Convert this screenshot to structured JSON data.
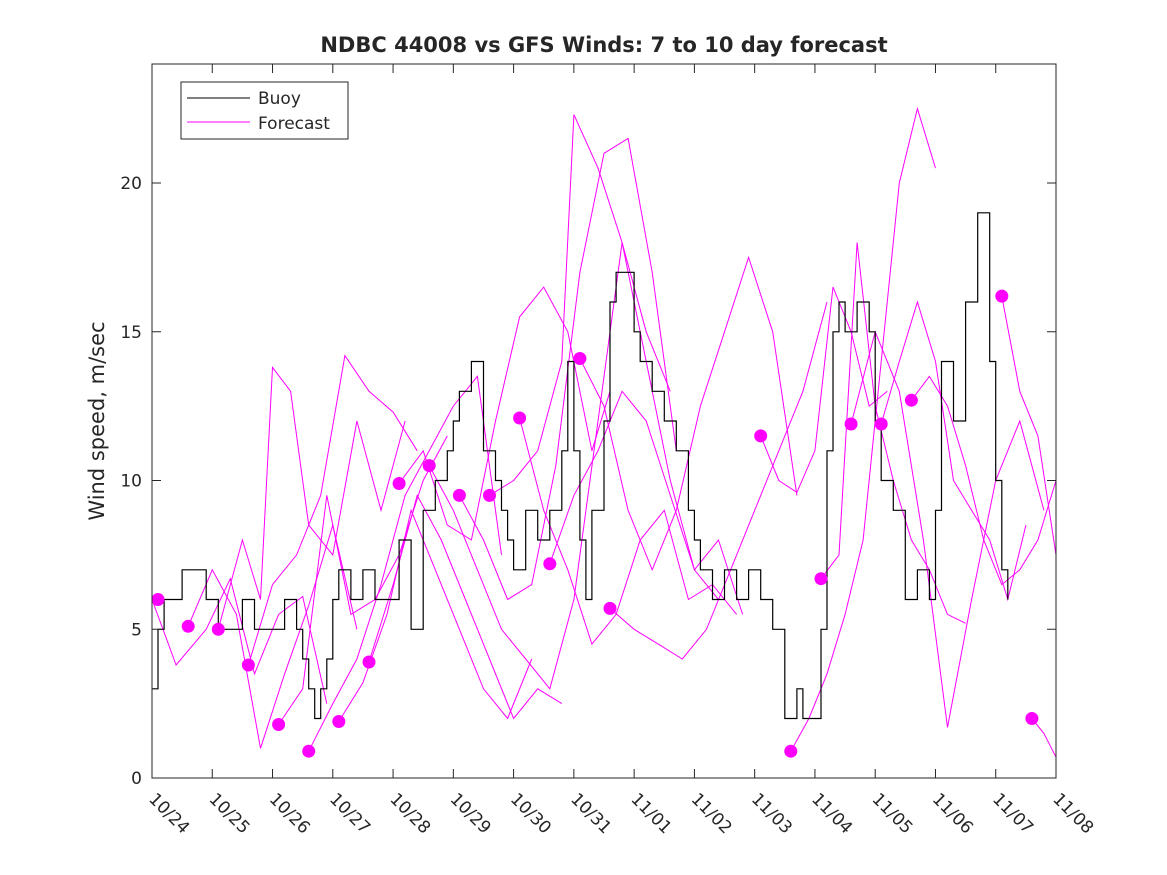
{
  "chart_data": {
    "type": "line",
    "title": "NDBC 44008 vs GFS Winds: 7 to 10 day forecast",
    "xlabel": "",
    "ylabel": "Wind speed, m/sec",
    "xlim": [
      0,
      15
    ],
    "ylim": [
      0,
      24
    ],
    "xtick_values": [
      0,
      1,
      2,
      3,
      4,
      5,
      6,
      7,
      8,
      9,
      10,
      11,
      12,
      13,
      14,
      15
    ],
    "xtick_labels": [
      "10/24",
      "10/25",
      "10/26",
      "10/27",
      "10/28",
      "10/29",
      "10/30",
      "10/31",
      "11/01",
      "11/02",
      "11/03",
      "11/04",
      "11/05",
      "11/06",
      "11/07",
      "11/08"
    ],
    "ytick_values": [
      0,
      5,
      10,
      15,
      20
    ],
    "ytick_labels": [
      "0",
      "5",
      "10",
      "15",
      "20"
    ],
    "grid": false,
    "legend_placement": "top-left",
    "colors": {
      "buoy": "#000000",
      "forecast": "#ff00ff",
      "axes": "#262626"
    },
    "series": [
      {
        "name": "Buoy",
        "x": [
          0,
          0.1,
          0.2,
          0.3,
          0.5,
          0.7,
          0.8,
          0.9,
          1.0,
          1.1,
          1.3,
          1.5,
          1.7,
          1.9,
          2.0,
          2.2,
          2.4,
          2.5,
          2.6,
          2.7,
          2.8,
          2.9,
          3.0,
          3.1,
          3.3,
          3.5,
          3.7,
          3.9,
          4.0,
          4.1,
          4.3,
          4.5,
          4.7,
          4.9,
          5.0,
          5.1,
          5.3,
          5.5,
          5.7,
          5.8,
          5.9,
          6.0,
          6.2,
          6.4,
          6.6,
          6.8,
          6.9,
          7.0,
          7.1,
          7.2,
          7.3,
          7.5,
          7.6,
          7.7,
          7.9,
          8.0,
          8.1,
          8.3,
          8.5,
          8.7,
          8.9,
          9.0,
          9.1,
          9.3,
          9.5,
          9.7,
          9.9,
          10.0,
          10.1,
          10.3,
          10.5,
          10.6,
          10.7,
          10.8,
          10.9,
          11.0,
          11.1,
          11.2,
          11.3,
          11.4,
          11.5,
          11.7,
          11.9,
          12.0,
          12.1,
          12.3,
          12.5,
          12.7,
          12.9,
          13.0,
          13.1,
          13.3,
          13.5,
          13.7,
          13.9,
          14.0,
          14.1,
          14.2
        ],
        "values": [
          3,
          5,
          6,
          6,
          7,
          7,
          7,
          6,
          6,
          5,
          5,
          6,
          5,
          5,
          5,
          6,
          5,
          4,
          3,
          2,
          3,
          4,
          6,
          7,
          6,
          7,
          6,
          6,
          6,
          8,
          5,
          9,
          10,
          11,
          12,
          13,
          14,
          11,
          10,
          9,
          8,
          7,
          9,
          8,
          9,
          11,
          14,
          11,
          8,
          6,
          9,
          12,
          16,
          17,
          17,
          15,
          14,
          13,
          12,
          11,
          9,
          8,
          7,
          6,
          7,
          6,
          7,
          7,
          6,
          5,
          2,
          2,
          3,
          2,
          2,
          2,
          5,
          11,
          15,
          16,
          15,
          16,
          15,
          12,
          10,
          9,
          6,
          7,
          6,
          9,
          14,
          12,
          16,
          19,
          14,
          10,
          7,
          6
        ]
      },
      {
        "name": "Forecast",
        "lines": [
          {
            "x": [
              0,
              0.4,
              0.9,
              1.3,
              1.7,
              2.1,
              2.5,
              2.9
            ],
            "values": [
              6.0,
              3.8,
              5.0,
              6.7,
              3.5,
              5.5,
              6.1,
              2.5
            ]
          },
          {
            "x": [
              0.6,
              1.0,
              1.4,
              1.8,
              2.2,
              2.6,
              3.0,
              3.4
            ],
            "values": [
              5.1,
              7.0,
              5.5,
              1.0,
              3.5,
              5.8,
              8.5,
              5.0
            ]
          },
          {
            "x": [
              1.1,
              1.5,
              1.8,
              2.0,
              2.3,
              2.6,
              3.0,
              3.4,
              3.8,
              4.2
            ],
            "values": [
              5.0,
              8.0,
              6.0,
              13.8,
              13.0,
              8.5,
              7.5,
              12.0,
              9.0,
              12.0
            ]
          },
          {
            "x": [
              1.6,
              2.0,
              2.4,
              2.8,
              3.2,
              3.6,
              4.0,
              4.4
            ],
            "values": [
              3.8,
              6.5,
              7.5,
              9.5,
              14.2,
              13.0,
              12.3,
              11.0
            ]
          },
          {
            "x": [
              2.1,
              2.5,
              2.9,
              3.3,
              3.7,
              4.1,
              4.5,
              4.9
            ],
            "values": [
              1.8,
              3.0,
              9.5,
              5.5,
              6.0,
              7.5,
              10.0,
              11.5
            ]
          },
          {
            "x": [
              2.6,
              3.0,
              3.4,
              3.8,
              4.2,
              4.6,
              5.0,
              5.4,
              5.8
            ],
            "values": [
              0.9,
              2.5,
              4.0,
              6.5,
              9.5,
              11.0,
              12.5,
              13.5,
              7.5
            ]
          },
          {
            "x": [
              3.1,
              3.5,
              3.9,
              4.3,
              4.7,
              5.1,
              5.5,
              5.9,
              6.3
            ],
            "values": [
              1.9,
              3.2,
              5.5,
              9.0,
              7.0,
              5.0,
              3.0,
              2.0,
              4.0
            ]
          },
          {
            "x": [
              3.6,
              4.0,
              4.4,
              4.8,
              5.2,
              5.6,
              6.0,
              6.4,
              6.8
            ],
            "values": [
              3.9,
              6.5,
              9.5,
              8.0,
              6.0,
              4.0,
              2.0,
              3.0,
              2.5
            ]
          },
          {
            "x": [
              4.1,
              4.5,
              4.9,
              5.3,
              5.7,
              6.1,
              6.5,
              6.9,
              7.3,
              7.6
            ],
            "values": [
              9.9,
              11.0,
              8.5,
              8.0,
              12.0,
              15.5,
              16.5,
              15.0,
              11.0,
              13.0
            ]
          },
          {
            "x": [
              4.6,
              5.0,
              5.4,
              5.8,
              6.2,
              6.6,
              7.0,
              7.4,
              7.8,
              8.2,
              8.6
            ],
            "values": [
              10.5,
              9.0,
              7.0,
              5.0,
              4.0,
              3.0,
              6.0,
              12.0,
              18.0,
              15.0,
              13.0
            ]
          },
          {
            "x": [
              5.1,
              5.5,
              5.9,
              6.3,
              6.7,
              7.1,
              7.5,
              7.9,
              8.3,
              8.7
            ],
            "values": [
              9.5,
              8.0,
              6.0,
              6.5,
              10.5,
              17.0,
              21.0,
              21.5,
              17.0,
              11.0
            ]
          },
          {
            "x": [
              5.6,
              6.0,
              6.4,
              6.8,
              7.0,
              7.4,
              7.8,
              8.2,
              8.6,
              9.0,
              9.4
            ],
            "values": [
              9.5,
              10.0,
              11.0,
              14.0,
              22.3,
              20.5,
              18.0,
              14.0,
              10.0,
              7.0,
              6.0
            ]
          },
          {
            "x": [
              6.1,
              6.5,
              6.9,
              7.3,
              7.7,
              8.1,
              8.5,
              8.9,
              9.3,
              9.7
            ],
            "values": [
              12.1,
              9.0,
              7.0,
              4.5,
              5.5,
              8.0,
              9.0,
              6.0,
              6.5,
              5.5
            ]
          },
          {
            "x": [
              6.6,
              7.0,
              7.4,
              7.8,
              8.2,
              8.6,
              9.0,
              9.4,
              9.8
            ],
            "values": [
              7.2,
              9.5,
              11.0,
              13.0,
              12.0,
              9.5,
              7.0,
              8.0,
              5.5
            ]
          },
          {
            "x": [
              7.1,
              7.5,
              7.9,
              8.3,
              8.7,
              9.1,
              9.5,
              9.9,
              10.3,
              10.7
            ],
            "values": [
              14.1,
              12.5,
              9.0,
              7.0,
              9.0,
              12.5,
              15.0,
              17.5,
              15.0,
              9.5
            ]
          },
          {
            "x": [
              7.6,
              8.0,
              8.4,
              8.8,
              9.2,
              9.6,
              10.0,
              10.4,
              10.8,
              11.2
            ],
            "values": [
              5.7,
              5.0,
              4.5,
              4.0,
              5.0,
              7.0,
              9.0,
              11.0,
              13.0,
              16.0
            ]
          },
          {
            "x": [
              10.1,
              10.4,
              10.7,
              11.0,
              11.3,
              11.6,
              11.9,
              12.2
            ],
            "values": [
              11.5,
              10.0,
              9.6,
              11.0,
              16.5,
              15.0,
              12.5,
              13.0
            ]
          },
          {
            "x": [
              10.6,
              10.9,
              11.2,
              11.5,
              11.8,
              12.1,
              12.4,
              12.7,
              13.0
            ],
            "values": [
              0.9,
              2.0,
              3.5,
              5.5,
              8.0,
              14.0,
              20.0,
              22.5,
              20.5
            ]
          },
          {
            "x": [
              11.1,
              11.4,
              11.7,
              12.0,
              12.3,
              12.6,
              12.9,
              13.2,
              13.5
            ],
            "values": [
              6.7,
              7.5,
              18.0,
              12.5,
              10.0,
              8.0,
              7.0,
              5.5,
              5.2
            ]
          },
          {
            "x": [
              11.6,
              12.0,
              12.4,
              12.8,
              13.2,
              13.6,
              14.0,
              14.4,
              14.8
            ],
            "values": [
              11.9,
              15.0,
              13.0,
              8.0,
              1.7,
              6.0,
              10.0,
              12.0,
              9.0
            ]
          },
          {
            "x": [
              12.1,
              12.4,
              12.7,
              13.0,
              13.3,
              13.6,
              13.9,
              14.2,
              14.5
            ],
            "values": [
              11.9,
              14.0,
              16.0,
              14.0,
              10.0,
              9.0,
              8.0,
              6.0,
              8.5
            ]
          },
          {
            "x": [
              12.6,
              12.9,
              13.2,
              13.5,
              13.8,
              14.1,
              14.4,
              14.7,
              15.0
            ],
            "values": [
              12.7,
              13.5,
              12.5,
              10.5,
              8.0,
              6.5,
              7.0,
              8.0,
              10.0
            ]
          },
          {
            "x": [
              14.1,
              14.4,
              14.7,
              15.0
            ],
            "values": [
              16.2,
              13.0,
              11.5,
              7.5
            ]
          },
          {
            "x": [
              14.6,
              14.8,
              15.0
            ],
            "values": [
              2.0,
              1.5,
              0.7
            ]
          }
        ],
        "markers": {
          "x": [
            0.1,
            0.6,
            1.1,
            1.6,
            2.1,
            2.6,
            3.1,
            3.6,
            4.1,
            4.6,
            5.1,
            5.6,
            6.1,
            6.6,
            7.1,
            7.6,
            10.1,
            10.6,
            11.1,
            11.6,
            12.1,
            12.6,
            14.1,
            14.6
          ],
          "values": [
            6.0,
            5.1,
            5.0,
            3.8,
            1.8,
            0.9,
            1.9,
            3.9,
            9.9,
            10.5,
            9.5,
            9.5,
            12.1,
            7.2,
            14.1,
            5.7,
            11.5,
            0.9,
            6.7,
            11.9,
            11.9,
            12.7,
            16.2,
            2.0
          ]
        }
      }
    ],
    "legend": [
      {
        "label": "Buoy",
        "color": "#000000"
      },
      {
        "label": "Forecast",
        "color": "#ff00ff"
      }
    ]
  }
}
